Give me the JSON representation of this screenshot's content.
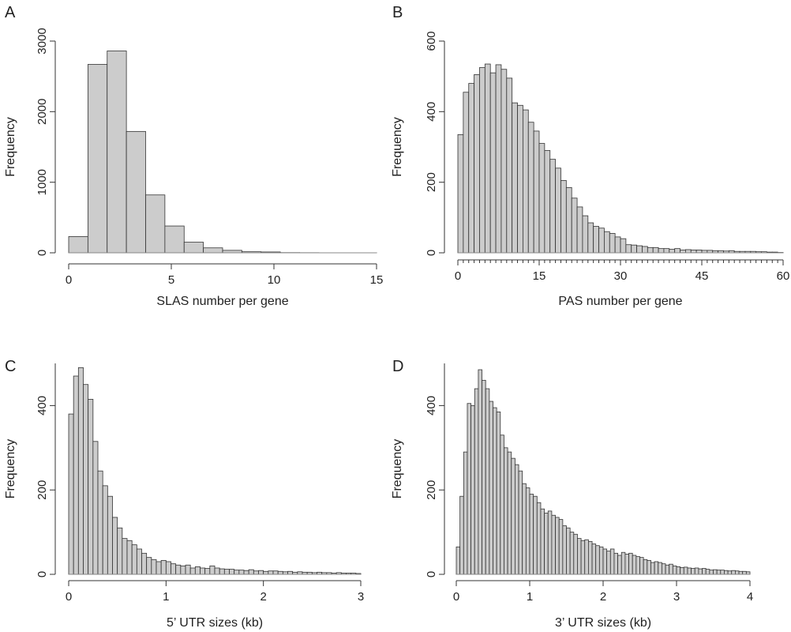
{
  "chart_data": [
    {
      "panel": "A",
      "type": "bar",
      "xlabel": "SLAS number per gene",
      "ylabel": "Frequency",
      "xlim": [
        -0.5,
        15.5
      ],
      "ylim": [
        0,
        3000
      ],
      "xticks": [
        "0",
        "5",
        "10",
        "15"
      ],
      "yticks": [
        "0",
        "1000",
        "2000",
        "3000"
      ],
      "bins": [
        {
          "x0": -0.5,
          "x1": 0.5,
          "value": 230
        },
        {
          "x0": 0.5,
          "x1": 1.5,
          "value": 2670
        },
        {
          "x0": 1.5,
          "x1": 2.5,
          "value": 2860
        },
        {
          "x0": 2.5,
          "x1": 3.5,
          "value": 1720
        },
        {
          "x0": 3.5,
          "x1": 4.5,
          "value": 820
        },
        {
          "x0": 4.5,
          "x1": 5.5,
          "value": 380
        },
        {
          "x0": 5.5,
          "x1": 6.5,
          "value": 150
        },
        {
          "x0": 6.5,
          "x1": 7.5,
          "value": 70
        },
        {
          "x0": 7.5,
          "x1": 8.5,
          "value": 35
        },
        {
          "x0": 8.5,
          "x1": 9.5,
          "value": 15
        },
        {
          "x0": 9.5,
          "x1": 10.5,
          "value": 12
        },
        {
          "x0": 10.5,
          "x1": 11.5,
          "value": 3
        },
        {
          "x0": 11.5,
          "x1": 12.5,
          "value": 2
        },
        {
          "x0": 12.5,
          "x1": 13.5,
          "value": 1
        },
        {
          "x0": 13.5,
          "x1": 14.5,
          "value": 1
        },
        {
          "x0": 14.5,
          "x1": 15.5,
          "value": 1
        }
      ]
    },
    {
      "panel": "B",
      "type": "bar",
      "xlabel": "PAS number per gene",
      "ylabel": "Frequency",
      "xlim": [
        0,
        60
      ],
      "ylim": [
        0,
        600
      ],
      "xticks": [
        "0",
        "15",
        "30",
        "45",
        "60"
      ],
      "yticks": [
        "0",
        "200",
        "400",
        "600"
      ],
      "bin_width": 1,
      "values": [
        335,
        455,
        480,
        505,
        525,
        535,
        510,
        533,
        520,
        495,
        425,
        418,
        405,
        370,
        345,
        310,
        290,
        265,
        240,
        205,
        185,
        155,
        130,
        105,
        85,
        75,
        70,
        60,
        55,
        45,
        40,
        23,
        22,
        20,
        18,
        15,
        15,
        12,
        12,
        10,
        12,
        8,
        9,
        8,
        8,
        7,
        7,
        6,
        6,
        5,
        6,
        4,
        4,
        4,
        4,
        3,
        3,
        2,
        2,
        1
      ]
    },
    {
      "panel": "C",
      "type": "bar",
      "xlabel": "5’ UTR sizes (kb)",
      "ylabel": "Frequency",
      "xlim": [
        0,
        3
      ],
      "ylim": [
        0,
        500
      ],
      "xticks": [
        "0",
        "1",
        "2",
        "3"
      ],
      "yticks": [
        "0",
        "200",
        "400"
      ],
      "bin_width": 0.05,
      "values": [
        380,
        470,
        490,
        450,
        415,
        315,
        245,
        210,
        185,
        135,
        110,
        85,
        80,
        70,
        60,
        50,
        40,
        35,
        30,
        33,
        30,
        25,
        22,
        20,
        22,
        15,
        18,
        15,
        14,
        20,
        15,
        13,
        12,
        12,
        10,
        10,
        9,
        11,
        8,
        9,
        7,
        8,
        8,
        7,
        6,
        7,
        5,
        6,
        5,
        5,
        4,
        5,
        4,
        4,
        3,
        4,
        3,
        3,
        3,
        2
      ]
    },
    {
      "panel": "D",
      "type": "bar",
      "xlabel": "3’ UTR sizes (kb)",
      "ylabel": "Frequency",
      "xlim": [
        0,
        4
      ],
      "ylim": [
        0,
        500
      ],
      "xticks": [
        "0",
        "1",
        "2",
        "3",
        "4"
      ],
      "yticks": [
        "0",
        "200",
        "400"
      ],
      "bin_width": 0.05,
      "values": [
        65,
        185,
        290,
        405,
        400,
        440,
        485,
        460,
        440,
        410,
        395,
        385,
        330,
        300,
        290,
        275,
        260,
        245,
        215,
        205,
        190,
        185,
        170,
        155,
        145,
        150,
        140,
        135,
        130,
        115,
        110,
        100,
        95,
        85,
        80,
        82,
        78,
        72,
        68,
        65,
        60,
        55,
        60,
        50,
        45,
        52,
        48,
        50,
        45,
        42,
        40,
        35,
        33,
        28,
        30,
        28,
        25,
        22,
        24,
        20,
        18,
        16,
        17,
        15,
        14,
        15,
        13,
        14,
        12,
        10,
        11,
        10,
        10,
        9,
        8,
        9,
        8,
        7,
        7,
        6
      ]
    }
  ]
}
